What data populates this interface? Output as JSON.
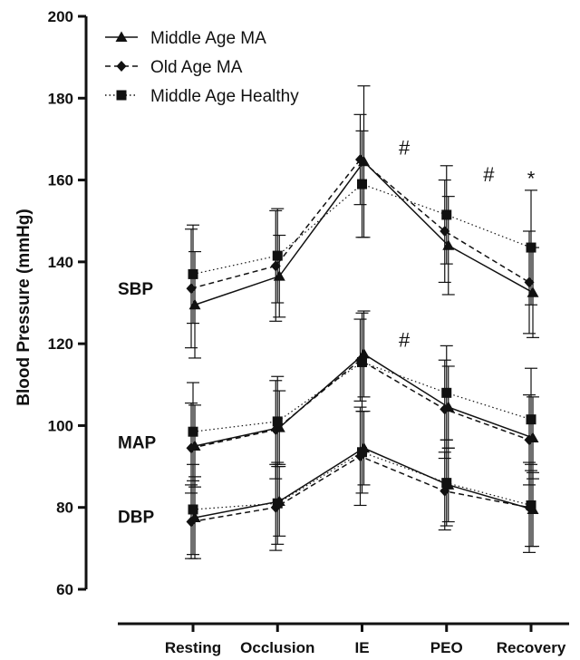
{
  "chart_data": {
    "type": "line",
    "ylabel": "Blood Pressure (mmHg)",
    "xlabel": "",
    "ylim": [
      60,
      200
    ],
    "yticks": [
      "60",
      "80",
      "100",
      "120",
      "140",
      "160",
      "180",
      "200"
    ],
    "categories": [
      "Resting",
      "Occlusion",
      "IE",
      "PEO",
      "Recovery"
    ],
    "legend": {
      "position": "top-left",
      "entries": [
        "Middle Age MA",
        "Old Age MA",
        "Middle Age Healthy"
      ]
    },
    "groups": [
      {
        "label": "SBP",
        "series": [
          {
            "name": "Middle Age MA",
            "marker": "triangle",
            "line": "solid",
            "values": [
              129.5,
              136.5,
              164.5,
              144.0,
              132.5
            ],
            "err": [
              13.0,
              10.0,
              18.5,
              12.0,
              11.0
            ]
          },
          {
            "name": "Old Age MA",
            "marker": "diamond",
            "line": "dashed",
            "values": [
              133.5,
              139.0,
              165.0,
              147.5,
              135.0
            ],
            "err": [
              14.5,
              13.5,
              11.0,
              12.5,
              12.5
            ]
          },
          {
            "name": "Middle Age Healthy",
            "marker": "square",
            "line": "dotted",
            "values": [
              137.0,
              141.5,
              159.0,
              151.5,
              143.5
            ],
            "err": [
              12.0,
              11.5,
              13.0,
              12.0,
              14.0
            ]
          }
        ]
      },
      {
        "label": "MAP",
        "series": [
          {
            "name": "Middle Age MA",
            "marker": "triangle",
            "line": "solid",
            "values": [
              95.0,
              99.5,
              117.5,
              104.5,
              97.0
            ],
            "err": [
              10.0,
              9.0,
              10.5,
              10.0,
              10.0
            ]
          },
          {
            "name": "Old Age MA",
            "marker": "diamond",
            "line": "dashed",
            "values": [
              94.5,
              99.0,
              116.0,
              104.0,
              96.5
            ],
            "err": [
              11.0,
              12.0,
              10.0,
              12.0,
              11.0
            ]
          },
          {
            "name": "Middle Age Healthy",
            "marker": "square",
            "line": "dotted",
            "values": [
              98.5,
              101.0,
              115.5,
              108.0,
              101.5
            ],
            "err": [
              12.0,
              11.0,
              12.0,
              11.5,
              12.5
            ]
          }
        ]
      },
      {
        "label": "DBP",
        "series": [
          {
            "name": "Middle Age MA",
            "marker": "triangle",
            "line": "solid",
            "values": [
              77.5,
              81.5,
              94.5,
              85.5,
              79.5
            ],
            "err": [
              10.0,
              8.5,
              9.0,
              9.0,
              9.0
            ]
          },
          {
            "name": "Old Age MA",
            "marker": "diamond",
            "line": "dashed",
            "values": [
              76.5,
              80.0,
              92.5,
              84.0,
              80.0
            ],
            "err": [
              9.0,
              10.5,
              12.0,
              9.5,
              11.0
            ]
          },
          {
            "name": "Middle Age Healthy",
            "marker": "square",
            "line": "dotted",
            "values": [
              79.5,
              81.0,
              93.5,
              86.0,
              80.5
            ],
            "err": [
              11.0,
              10.0,
              10.0,
              10.5,
              10.0
            ]
          }
        ]
      }
    ],
    "annotations": [
      {
        "text": "#",
        "category": "IE",
        "offset": 0.5,
        "y": 168
      },
      {
        "text": "#",
        "category": "PEO",
        "offset": 0.5,
        "y": 161.5
      },
      {
        "text": "*",
        "category": "Recovery",
        "offset": 0.0,
        "y": 160.5
      },
      {
        "text": "#",
        "category": "IE",
        "offset": 0.5,
        "y": 121
      }
    ]
  }
}
